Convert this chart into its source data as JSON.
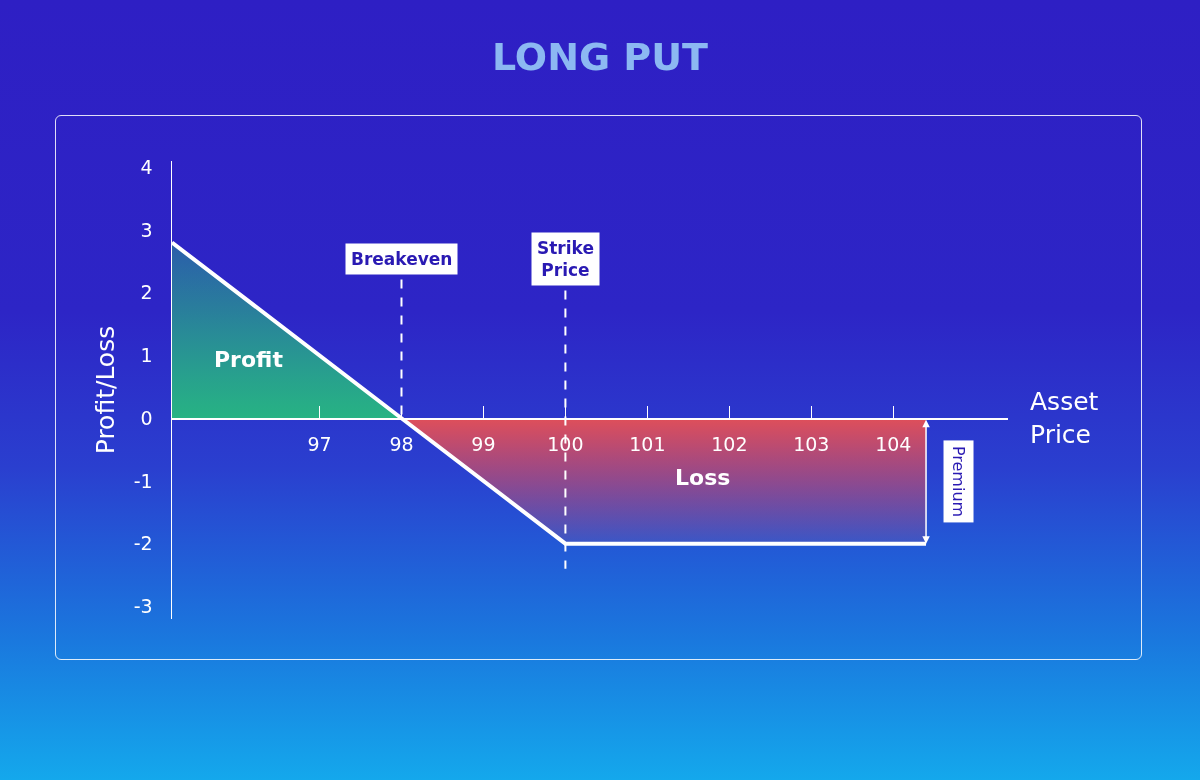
{
  "chart_data": {
    "type": "line",
    "title": "LONG PUT",
    "xlabel": "Asset Price",
    "ylabel": "Profit/Loss",
    "series": [
      {
        "type": "area",
        "name": "Profit",
        "color": "#27b383",
        "x": [
          95.2,
          98
        ],
        "values": [
          2.8,
          0
        ]
      },
      {
        "type": "area",
        "name": "Loss",
        "color": "#df4f5a",
        "x": [
          98,
          100,
          104.4
        ],
        "values": [
          0,
          -2,
          -2
        ]
      },
      {
        "color": "#ffffff",
        "x": [
          95.2,
          98,
          100,
          104.4
        ],
        "values": [
          2.8,
          0,
          -2,
          -2
        ]
      }
    ],
    "xlim": [
      95.2,
      105.4
    ],
    "xticks": [
      97,
      98,
      99,
      100,
      101,
      102,
      103,
      104
    ],
    "ylim": [
      -3.2,
      4.1
    ],
    "yticks": [
      -3,
      -2,
      -1,
      0,
      1,
      2,
      3,
      4
    ],
    "ref_lines": [
      {
        "axis": "x",
        "value": 98,
        "label": "Breakeven",
        "color": "#ffffff",
        "line_style": "dashed"
      },
      {
        "axis": "x",
        "value": 100,
        "label": "Strike Price",
        "color": "#ffffff",
        "line_style": "dashed"
      }
    ],
    "annotations": [
      "Premium"
    ]
  }
}
